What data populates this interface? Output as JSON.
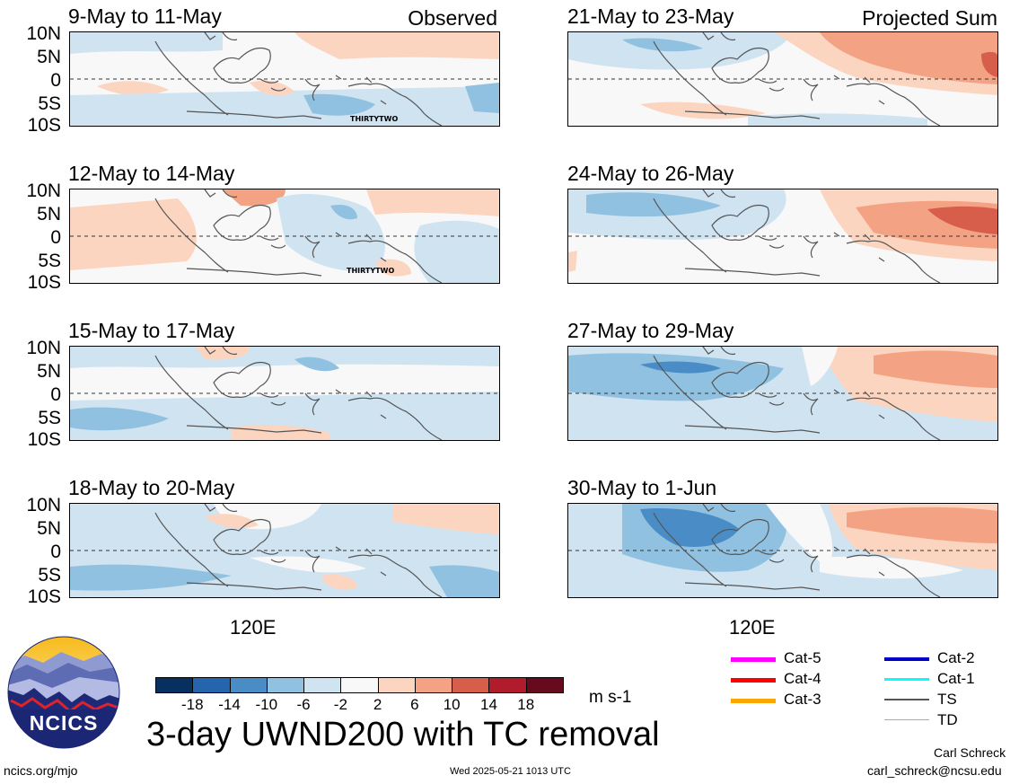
{
  "observed_label": "Observed",
  "projected_label": "Projected Sum",
  "lat_labels": [
    "10N",
    "5N",
    "0",
    "5S",
    "10S"
  ],
  "lon_label": "120E",
  "panels": [
    {
      "title": "9-May to 11-May",
      "storm_label": "THIRTYTWO"
    },
    {
      "title": "12-May to 14-May",
      "storm_label": "THIRTYTWO"
    },
    {
      "title": "15-May to 17-May",
      "storm_label": ""
    },
    {
      "title": "18-May to 20-May",
      "storm_label": ""
    },
    {
      "title": "21-May to 23-May",
      "storm_label": ""
    },
    {
      "title": "24-May to 26-May",
      "storm_label": ""
    },
    {
      "title": "27-May to 29-May",
      "storm_label": ""
    },
    {
      "title": "30-May to 1-Jun",
      "storm_label": ""
    }
  ],
  "colorbar": {
    "ticks": [
      "-18",
      "-14",
      "-10",
      "-6",
      "-2",
      "2",
      "6",
      "10",
      "14",
      "18"
    ],
    "colors": [
      "#08305e",
      "#2565ad",
      "#4a8dc6",
      "#91c1e0",
      "#cfe3f1",
      "#f8f8f8",
      "#fcd5c1",
      "#f3a384",
      "#d85e4c",
      "#b01c2c",
      "#670a1e"
    ],
    "units": "m s-1"
  },
  "legend": [
    {
      "label": "Cat-5",
      "color": "#ff00ff"
    },
    {
      "label": "Cat-4",
      "color": "#ff0000"
    },
    {
      "label": "Cat-3",
      "color": "#ffa500"
    },
    {
      "label": "Cat-2",
      "color": "#0000c8"
    },
    {
      "label": "Cat-1",
      "color": "#00ffff"
    },
    {
      "label": "TS",
      "color": "#555555"
    },
    {
      "label": "TD",
      "color": "#aaaaaa"
    }
  ],
  "logo_text": "NCICS",
  "main_title": "3-day UWND200 with TC removal",
  "website": "ncics.org/mjo",
  "timestamp": "Wed 2025-05-21 1013 UTC",
  "author": "Carl Schreck",
  "email": "carl_schreck@ncsu.edu"
}
